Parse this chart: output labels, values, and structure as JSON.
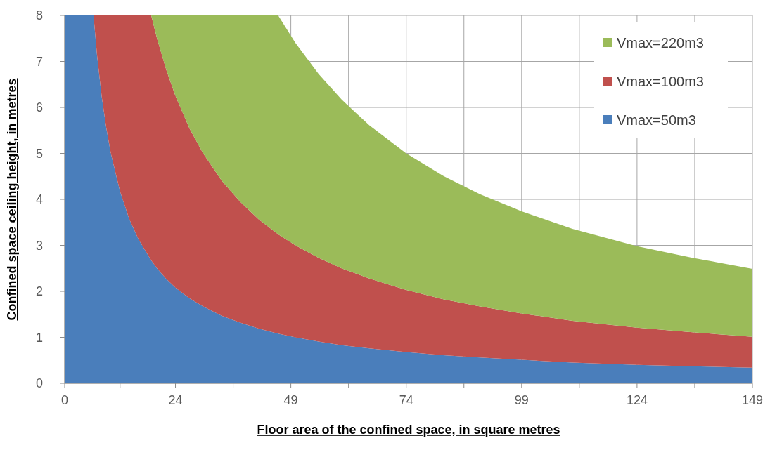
{
  "chart_data": {
    "type": "area",
    "stacked": true,
    "xlabel": "Floor area of the confined space, in square metres",
    "ylabel": "Confined space ceiling height, in metres",
    "x": [
      0,
      2,
      4,
      6.25,
      7,
      8,
      9,
      10,
      12,
      14,
      16,
      18.75,
      20,
      22,
      24,
      27,
      30,
      34,
      38,
      42,
      46.25,
      50,
      55,
      60,
      66,
      74,
      82,
      90,
      99,
      110,
      124,
      136,
      149
    ],
    "series": [
      {
        "name": "Vmax=50m3",
        "color": "#4a7ebb",
        "values": [
          8,
          8,
          8,
          8,
          7.14,
          6.25,
          5.56,
          5.0,
          4.17,
          3.57,
          3.13,
          2.67,
          2.5,
          2.27,
          2.08,
          1.85,
          1.67,
          1.47,
          1.32,
          1.19,
          1.08,
          1.0,
          0.91,
          0.83,
          0.76,
          0.68,
          0.61,
          0.56,
          0.51,
          0.45,
          0.4,
          0.37,
          0.34
        ]
      },
      {
        "name": "Vmax=100m3",
        "color": "#c0504d",
        "values": [
          0,
          0,
          0,
          0,
          0.86,
          1.75,
          2.44,
          3.0,
          3.83,
          4.43,
          4.87,
          5.33,
          5.0,
          4.55,
          4.17,
          3.7,
          3.33,
          2.94,
          2.63,
          2.38,
          2.16,
          2.0,
          1.82,
          1.67,
          1.52,
          1.35,
          1.22,
          1.11,
          1.01,
          0.91,
          0.81,
          0.74,
          0.67
        ]
      },
      {
        "name": "Vmax=220m3",
        "color": "#9bbb59",
        "values": [
          0,
          0,
          0,
          0,
          0,
          0,
          0,
          0,
          0,
          0,
          0,
          0,
          0.5,
          1.18,
          1.75,
          2.45,
          3.0,
          3.59,
          4.05,
          4.43,
          4.76,
          4.4,
          4.0,
          3.67,
          3.33,
          2.97,
          2.68,
          2.44,
          2.22,
          2.0,
          1.77,
          1.62,
          1.48
        ]
      }
    ],
    "xlim": [
      0,
      149
    ],
    "ylim": [
      0,
      8
    ],
    "xticks": [
      0,
      {
        "value": 12,
        "label": null
      },
      24,
      {
        "value": 36.5,
        "label": null
      },
      49,
      {
        "value": 61.5,
        "label": null
      },
      74,
      {
        "value": 86.5,
        "label": null
      },
      99,
      {
        "value": 111.5,
        "label": null
      },
      124,
      {
        "value": 136.5,
        "label": null
      },
      149
    ],
    "yticks": [
      0,
      1,
      2,
      3,
      4,
      5,
      6,
      7,
      8
    ],
    "grid": true,
    "legend": "top right"
  }
}
